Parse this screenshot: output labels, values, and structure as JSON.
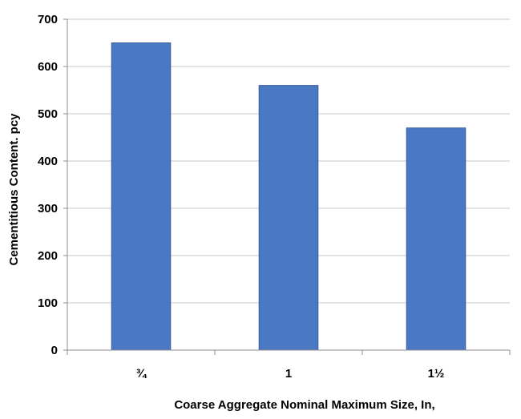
{
  "chart_data": {
    "type": "bar",
    "categories": [
      "¾",
      "1",
      "1½"
    ],
    "values": [
      650,
      560,
      470
    ],
    "title": "",
    "xlabel": "Coarse Aggregate Nominal Maximum Size, In,",
    "ylabel": "Cementitious Content. pcy",
    "ylim": [
      0,
      700
    ],
    "yticks": [
      0,
      100,
      200,
      300,
      400,
      500,
      600,
      700
    ],
    "grid": true,
    "legend": "none",
    "colors": {
      "bar": "#4a78c2",
      "bar_edge": "#3a5f9c",
      "grid": "#c8c8c8"
    }
  }
}
